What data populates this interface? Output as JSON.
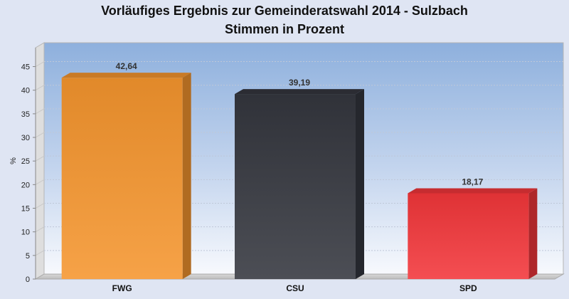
{
  "chart_data": {
    "type": "bar",
    "title": "Vorläufiges Ergebnis zur Gemeinderatswahl 2014 - Sulzbach",
    "subtitle": "Stimmen in Prozent",
    "xlabel": "",
    "ylabel": "%",
    "ylim": [
      0,
      49
    ],
    "yticks": [
      0,
      5,
      10,
      15,
      20,
      25,
      30,
      35,
      40,
      45
    ],
    "grid": true,
    "three_d": true,
    "categories": [
      "FWG",
      "CSU",
      "SPD"
    ],
    "values": [
      42.64,
      39.19,
      18.17
    ],
    "value_labels": [
      "42,64",
      "39,19",
      "18,17"
    ],
    "colors": [
      "#f5952e",
      "#34363e",
      "#f2363a"
    ]
  }
}
